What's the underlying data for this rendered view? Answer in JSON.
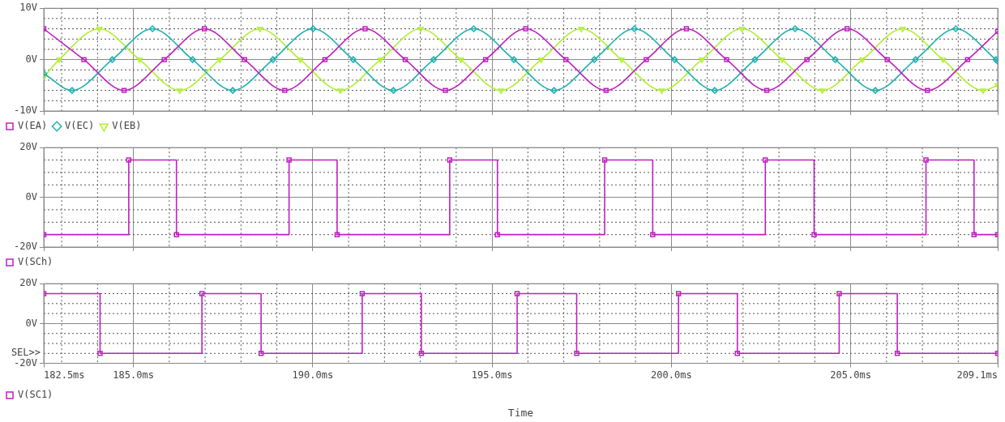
{
  "chart_data": [
    {
      "type": "line",
      "legend": "bottom left",
      "grid": true,
      "tick_labels": "y",
      "xlim": [
        182.5,
        209.1
      ],
      "ylim": [
        -10,
        10
      ],
      "yticks": [
        {
          "value": -10,
          "label": "-10V"
        },
        {
          "value": -8,
          "label": null
        },
        {
          "value": -6,
          "label": null
        },
        {
          "value": -4,
          "label": null
        },
        {
          "value": -2,
          "label": null
        },
        {
          "value": 0,
          "label": "0V"
        },
        {
          "value": 2,
          "label": null
        },
        {
          "value": 4,
          "label": null
        },
        {
          "value": 6,
          "label": null
        },
        {
          "value": 8,
          "label": null
        },
        {
          "value": 10,
          "label": "10V"
        }
      ],
      "series": [
        {
          "name": "V(EA)",
          "color": "#c020c0",
          "marker": "square",
          "x": [
            182.5,
            183.62,
            184.74,
            185.86,
            186.98,
            188.1,
            189.22,
            190.34,
            191.46,
            192.58,
            193.7,
            194.82,
            195.94,
            197.06,
            198.18,
            199.3,
            200.42,
            201.54,
            202.66,
            203.78,
            204.9,
            206.02,
            207.14,
            208.26,
            209.1
          ],
          "values": [
            6,
            0,
            -6,
            0,
            6,
            0,
            -6,
            0,
            6,
            0,
            -6,
            0,
            6,
            0,
            -6,
            0,
            6,
            0,
            -6,
            0,
            6,
            0,
            -6,
            0,
            5.5
          ]
        },
        {
          "name": "V(EC)",
          "color": "#20b0b0",
          "marker": "diamond",
          "x": [
            182.5,
            183.29,
            184.41,
            185.53,
            186.65,
            187.77,
            188.89,
            190.01,
            191.13,
            192.25,
            193.37,
            194.49,
            195.61,
            196.73,
            197.85,
            198.97,
            200.09,
            201.21,
            202.33,
            203.45,
            204.57,
            205.69,
            206.81,
            207.93,
            209.05,
            209.1
          ],
          "values": [
            -2.7,
            -6,
            0,
            6,
            0,
            -6,
            0,
            6,
            0,
            -6,
            0,
            6,
            0,
            -6,
            0,
            6,
            0,
            -6,
            0,
            6,
            0,
            -6,
            0,
            6,
            0,
            -0.3
          ]
        },
        {
          "name": "V(EB)",
          "color": "#b0f030",
          "marker": "triangle",
          "x": [
            182.5,
            182.93,
            184.05,
            185.17,
            186.29,
            187.41,
            188.53,
            189.65,
            190.77,
            191.89,
            193.01,
            194.13,
            195.25,
            196.37,
            197.49,
            198.61,
            199.73,
            200.85,
            201.97,
            203.09,
            204.21,
            205.33,
            206.45,
            207.57,
            208.69,
            209.1
          ],
          "values": [
            -3.4,
            0,
            6,
            0,
            -6,
            0,
            6,
            0,
            -6,
            0,
            6,
            0,
            -6,
            0,
            6,
            0,
            -6,
            0,
            6,
            0,
            -6,
            0,
            6,
            0,
            -6,
            -5
          ]
        }
      ]
    },
    {
      "type": "step",
      "legend": "bottom left",
      "grid": true,
      "tick_labels": "y",
      "xlim": [
        182.5,
        209.1
      ],
      "ylim": [
        -20,
        20
      ],
      "yticks": [
        {
          "value": -20,
          "label": "-20V"
        },
        {
          "value": -15,
          "label": null
        },
        {
          "value": -10,
          "label": null
        },
        {
          "value": -5,
          "label": null
        },
        {
          "value": 0,
          "label": "0V"
        },
        {
          "value": 5,
          "label": null
        },
        {
          "value": 10,
          "label": null
        },
        {
          "value": 15,
          "label": null
        },
        {
          "value": 20,
          "label": "20V"
        }
      ],
      "series": [
        {
          "name": "V(SCh)",
          "color": "#c020c0",
          "marker": "square",
          "x": [
            182.5,
            184.87,
            186.2,
            189.34,
            190.68,
            193.82,
            195.15,
            198.14,
            199.48,
            202.62,
            203.98,
            207.1,
            208.44,
            209.1
          ],
          "values": [
            -15,
            15,
            -15,
            15,
            -15,
            15,
            -15,
            15,
            -15,
            15,
            -15,
            15,
            -15,
            -15
          ]
        }
      ]
    },
    {
      "type": "step",
      "legend": "bottom left",
      "grid": true,
      "xlabel": "Time",
      "annotations": [
        "SEL>>"
      ],
      "xlim": [
        182.5,
        209.1
      ],
      "xticks": [
        {
          "value": 182.5,
          "label": "182.5ms"
        },
        {
          "value": 183,
          "label": null
        },
        {
          "value": 184,
          "label": null
        },
        {
          "value": 185,
          "label": "185.0ms"
        },
        {
          "value": 186,
          "label": null
        },
        {
          "value": 187,
          "label": null
        },
        {
          "value": 188,
          "label": null
        },
        {
          "value": 189,
          "label": null
        },
        {
          "value": 190,
          "label": "190.0ms"
        },
        {
          "value": 191,
          "label": null
        },
        {
          "value": 192,
          "label": null
        },
        {
          "value": 193,
          "label": null
        },
        {
          "value": 194,
          "label": null
        },
        {
          "value": 195,
          "label": "195.0ms"
        },
        {
          "value": 196,
          "label": null
        },
        {
          "value": 197,
          "label": null
        },
        {
          "value": 198,
          "label": null
        },
        {
          "value": 199,
          "label": null
        },
        {
          "value": 200,
          "label": "200.0ms"
        },
        {
          "value": 201,
          "label": null
        },
        {
          "value": 202,
          "label": null
        },
        {
          "value": 203,
          "label": null
        },
        {
          "value": 204,
          "label": null
        },
        {
          "value": 205,
          "label": "205.0ms"
        },
        {
          "value": 206,
          "label": null
        },
        {
          "value": 207,
          "label": null
        },
        {
          "value": 208,
          "label": null
        },
        {
          "value": 209.1,
          "label": "209.1ms"
        }
      ],
      "ylim": [
        -20,
        20
      ],
      "yticks": [
        {
          "value": -20,
          "label": "-20V"
        },
        {
          "value": -15,
          "label": null
        },
        {
          "value": -10,
          "label": null
        },
        {
          "value": -5,
          "label": null
        },
        {
          "value": 0,
          "label": "0V"
        },
        {
          "value": 5,
          "label": null
        },
        {
          "value": 10,
          "label": null
        },
        {
          "value": 15,
          "label": null
        },
        {
          "value": 20,
          "label": "20V"
        }
      ],
      "series": [
        {
          "name": "V(SC1)",
          "color": "#c020c0",
          "marker": "square",
          "x": [
            182.5,
            184.07,
            186.91,
            188.56,
            191.38,
            193.03,
            195.7,
            197.36,
            200.2,
            201.84,
            204.68,
            206.3,
            209.1
          ],
          "values": [
            15,
            -15,
            15,
            -15,
            15,
            -15,
            15,
            -15,
            15,
            -15,
            15,
            -15,
            -15
          ]
        }
      ]
    }
  ]
}
